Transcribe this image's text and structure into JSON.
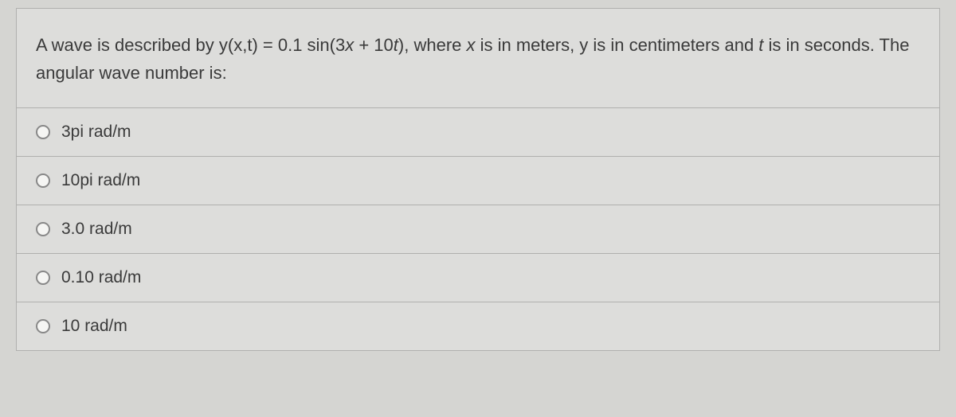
{
  "question": {
    "text_parts": [
      "A wave is described by y(x,t) = 0.1 sin(3",
      "x",
      " + 10",
      "t",
      "), where ",
      "x",
      " is in meters, y is in centimeters and ",
      "t",
      " is in seconds. The angular wave number is:"
    ]
  },
  "options": [
    {
      "label": "3pi rad/m"
    },
    {
      "label": "10pi rad/m"
    },
    {
      "label": "3.0 rad/m"
    },
    {
      "label": "0.10 rad/m"
    },
    {
      "label": "10 rad/m"
    }
  ],
  "colors": {
    "background": "#d5d5d2",
    "container_bg": "#dddddb",
    "border": "#b0b0ae",
    "text": "#3a3a3a",
    "radio_border": "#888"
  }
}
